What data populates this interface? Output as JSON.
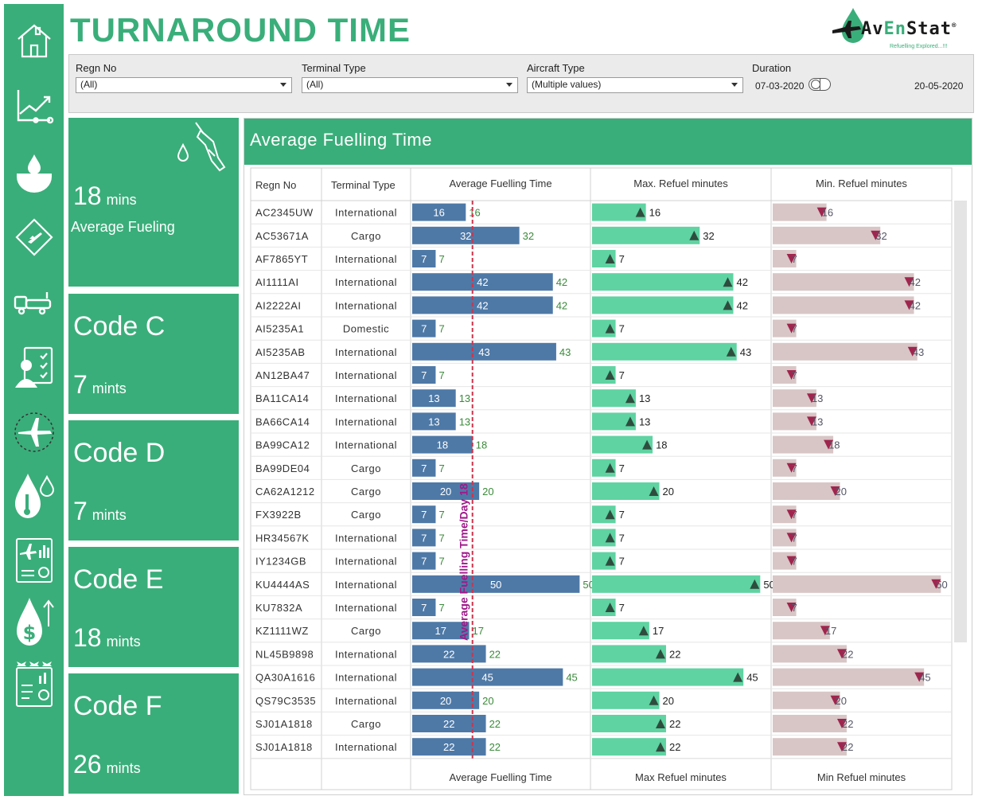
{
  "title": "TURNAROUND TIME",
  "logo": {
    "name": "AvEnStat",
    "tagline": "Refuelling  Explored...!!!"
  },
  "filters": {
    "regn_no": {
      "label": "Regn No",
      "value": "(All)"
    },
    "terminal_type": {
      "label": "Terminal Type",
      "value": "(All)"
    },
    "aircraft_type": {
      "label": "Aircraft Type",
      "value": "(Multiple values)"
    },
    "duration": {
      "label": "Duration",
      "start": "07-03-2020",
      "end": "20-05-2020"
    }
  },
  "sidebar": {
    "items": [
      {
        "icon": "home-icon"
      },
      {
        "icon": "trend-chart-icon"
      },
      {
        "icon": "fuel-drop-hand-icon"
      },
      {
        "icon": "runway-plane-icon"
      },
      {
        "icon": "fuel-truck-icon"
      },
      {
        "icon": "clipboard-person-icon"
      },
      {
        "icon": "airplane-target-icon"
      },
      {
        "icon": "fuel-temperature-icon"
      },
      {
        "icon": "flight-report-icon"
      },
      {
        "icon": "fuel-cost-icon"
      },
      {
        "icon": "fleet-report-icon"
      }
    ]
  },
  "kpis": {
    "average": {
      "value": "18",
      "unit": "mins",
      "label": "Average Fueling",
      "icon": "fuel-nozzle-icon"
    },
    "codes": [
      {
        "code": "Code C",
        "value": "7",
        "unit": "mints"
      },
      {
        "code": "Code D",
        "value": "7",
        "unit": "mints"
      },
      {
        "code": "Code E",
        "value": "18",
        "unit": "mints"
      },
      {
        "code": "Code F",
        "value": "26",
        "unit": "mints"
      }
    ]
  },
  "chart_panel": {
    "title": "Average Fuelling Time",
    "columns": {
      "regn": "Regn No",
      "terminal": "Terminal Type",
      "avg": "Average Fuelling Time",
      "max": "Max. Refuel minutes",
      "min": "Min. Refuel minutes"
    },
    "footer": {
      "avg": "Average Fuelling Time",
      "max": "Max Refuel minutes",
      "min": "Min Refuel minutes"
    },
    "colors": {
      "avg_bar": "#4e79a7",
      "max_bar": "#5fd3a2",
      "min_bar": "#d8c6c6",
      "ref_line": "#d0334a",
      "ref_label": "#a0198a",
      "label_green": "#3a8a3a",
      "marker_dark": "#2e4d3e",
      "marker_red": "#a0254e"
    }
  },
  "chart_data": {
    "type": "bar",
    "reference_line": {
      "value": 18,
      "label": "Average Fuelling Time/Day 18"
    },
    "xlim": [
      0,
      53
    ],
    "rows": [
      {
        "regn": "AC2345UW",
        "terminal": "International",
        "avg": 16,
        "max": 16,
        "min": 16
      },
      {
        "regn": "AC53671A",
        "terminal": "Cargo",
        "avg": 32,
        "max": 32,
        "min": 32
      },
      {
        "regn": "AF7865YT",
        "terminal": "International",
        "avg": 7,
        "max": 7,
        "min": 7
      },
      {
        "regn": "AI1111AI",
        "terminal": "International",
        "avg": 42,
        "max": 42,
        "min": 42
      },
      {
        "regn": "AI2222AI",
        "terminal": "International",
        "avg": 42,
        "max": 42,
        "min": 42
      },
      {
        "regn": "AI5235A1",
        "terminal": "Domestic",
        "avg": 7,
        "max": 7,
        "min": 7
      },
      {
        "regn": "AI5235AB",
        "terminal": "International",
        "avg": 43,
        "max": 43,
        "min": 43
      },
      {
        "regn": "AN12BA47",
        "terminal": "International",
        "avg": 7,
        "max": 7,
        "min": 7
      },
      {
        "regn": "BA11CA14",
        "terminal": "International",
        "avg": 13,
        "max": 13,
        "min": 13
      },
      {
        "regn": "BA66CA14",
        "terminal": "International",
        "avg": 13,
        "max": 13,
        "min": 13
      },
      {
        "regn": "BA99CA12",
        "terminal": "International",
        "avg": 18,
        "max": 18,
        "min": 18
      },
      {
        "regn": "BA99DE04",
        "terminal": "Cargo",
        "avg": 7,
        "max": 7,
        "min": 7
      },
      {
        "regn": "CA62A1212",
        "terminal": "Cargo",
        "avg": 20,
        "max": 20,
        "min": 20
      },
      {
        "regn": "FX3922B",
        "terminal": "Cargo",
        "avg": 7,
        "max": 7,
        "min": 7
      },
      {
        "regn": "HR34567K",
        "terminal": "International",
        "avg": 7,
        "max": 7,
        "min": 7
      },
      {
        "regn": "IY1234GB",
        "terminal": "International",
        "avg": 7,
        "max": 7,
        "min": 7
      },
      {
        "regn": "KU4444AS",
        "terminal": "International",
        "avg": 50,
        "max": 50,
        "min": 50
      },
      {
        "regn": "KU7832A",
        "terminal": "International",
        "avg": 7,
        "max": 7,
        "min": 7
      },
      {
        "regn": "KZ1111WZ",
        "terminal": "Cargo",
        "avg": 17,
        "max": 17,
        "min": 17
      },
      {
        "regn": "NL45B9898",
        "terminal": "International",
        "avg": 22,
        "max": 22,
        "min": 22
      },
      {
        "regn": "QA30A1616",
        "terminal": "International",
        "avg": 45,
        "max": 45,
        "min": 45
      },
      {
        "regn": "QS79C3535",
        "terminal": "International",
        "avg": 20,
        "max": 20,
        "min": 20
      },
      {
        "regn": "SJ01A1818",
        "terminal": "Cargo",
        "avg": 22,
        "max": 22,
        "min": 22
      },
      {
        "regn": "SJ01A1818",
        "terminal": "International",
        "avg": 22,
        "max": 22,
        "min": 22
      }
    ]
  }
}
